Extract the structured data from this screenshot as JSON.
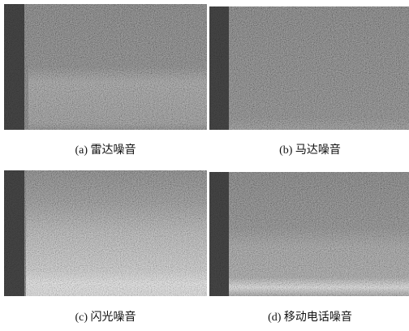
{
  "figure": {
    "panels": [
      {
        "caption": "(a) 雷达噪音"
      },
      {
        "caption": "(b) 马达噪音"
      },
      {
        "caption": "(c) 闪光噪音"
      },
      {
        "caption": "(d) 移动电话噪音"
      }
    ]
  }
}
